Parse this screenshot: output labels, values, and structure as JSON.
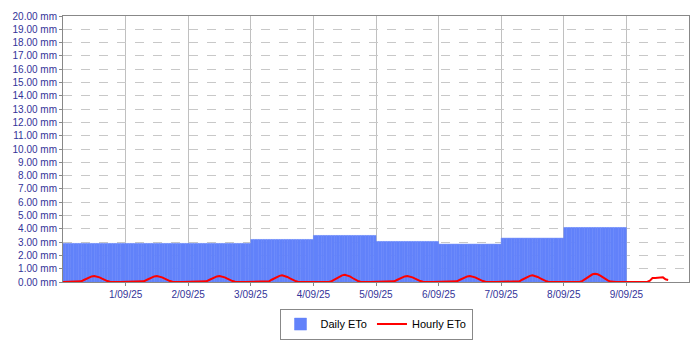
{
  "chart_data": {
    "type": "bar",
    "categories": [
      null,
      null,
      null,
      null,
      null,
      null,
      null,
      null,
      null,
      null,
      null,
      null,
      null,
      null,
      null,
      null,
      null,
      null,
      null,
      null,
      null,
      null,
      null,
      null,
      "1/09/25",
      null,
      null,
      null,
      null,
      null,
      null,
      null,
      null,
      null,
      null,
      null,
      null,
      null,
      null,
      null,
      null,
      null,
      null,
      null,
      null,
      null,
      null,
      null,
      "2/09/25",
      null,
      null,
      null,
      null,
      null,
      null,
      null,
      null,
      null,
      null,
      null,
      null,
      null,
      null,
      null,
      null,
      null,
      null,
      null,
      null,
      null,
      null,
      null,
      "3/09/25",
      null,
      null,
      null,
      null,
      null,
      null,
      null,
      null,
      null,
      null,
      null,
      null,
      null,
      null,
      null,
      null,
      null,
      null,
      null,
      null,
      null,
      null,
      null,
      "4/09/25",
      null,
      null,
      null,
      null,
      null,
      null,
      null,
      null,
      null,
      null,
      null,
      null,
      null,
      null,
      null,
      null,
      null,
      null,
      null,
      null,
      null,
      null,
      null,
      "5/09/25",
      null,
      null,
      null,
      null,
      null,
      null,
      null,
      null,
      null,
      null,
      null,
      null,
      null,
      null,
      null,
      null,
      null,
      null,
      null,
      null,
      null,
      null,
      null,
      "6/09/25",
      null,
      null,
      null,
      null,
      null,
      null,
      null,
      null,
      null,
      null,
      null,
      null,
      null,
      null,
      null,
      null,
      null,
      null,
      null,
      null,
      null,
      null,
      null,
      "7/09/25",
      null,
      null,
      null,
      null,
      null,
      null,
      null,
      null,
      null,
      null,
      null,
      null,
      null,
      null,
      null,
      null,
      null,
      null,
      null,
      null,
      null,
      null,
      null,
      "8/09/25",
      null,
      null,
      null,
      null,
      null,
      null,
      null,
      null,
      null,
      null,
      null,
      null,
      null,
      null,
      null,
      null,
      null,
      null,
      null,
      null,
      null,
      null,
      null,
      "9/09/25",
      null,
      null,
      null,
      null,
      null,
      null,
      null,
      null,
      null,
      null,
      null,
      null,
      null,
      null,
      null,
      null,
      null,
      null,
      null,
      null,
      null,
      null,
      null,
      null
    ],
    "series": [
      {
        "name": "Daily ETo",
        "type": "bar",
        "color": "#6282FA",
        "values": [
          2.9,
          2.9,
          2.9,
          2.9,
          2.9,
          2.9,
          2.9,
          2.9,
          2.9,
          2.9,
          2.9,
          2.9,
          2.9,
          2.9,
          2.9,
          2.9,
          2.9,
          2.9,
          2.9,
          2.9,
          2.9,
          2.9,
          2.9,
          2.9,
          2.9,
          2.9,
          2.9,
          2.9,
          2.9,
          2.9,
          2.9,
          2.9,
          2.9,
          2.9,
          2.9,
          2.9,
          2.9,
          2.9,
          2.9,
          2.9,
          2.9,
          2.9,
          2.9,
          2.9,
          2.9,
          2.9,
          2.9,
          2.9,
          2.9,
          2.9,
          2.9,
          2.9,
          2.9,
          2.9,
          2.9,
          2.9,
          2.9,
          2.9,
          2.9,
          2.9,
          2.9,
          2.9,
          2.9,
          2.9,
          2.9,
          2.9,
          2.9,
          2.9,
          2.9,
          2.9,
          2.9,
          2.9,
          3.2,
          3.2,
          3.2,
          3.2,
          3.2,
          3.2,
          3.2,
          3.2,
          3.2,
          3.2,
          3.2,
          3.2,
          3.2,
          3.2,
          3.2,
          3.2,
          3.2,
          3.2,
          3.2,
          3.2,
          3.2,
          3.2,
          3.2,
          3.2,
          3.5,
          3.5,
          3.5,
          3.5,
          3.5,
          3.5,
          3.5,
          3.5,
          3.5,
          3.5,
          3.5,
          3.5,
          3.5,
          3.5,
          3.5,
          3.5,
          3.5,
          3.5,
          3.5,
          3.5,
          3.5,
          3.5,
          3.5,
          3.5,
          3.05,
          3.05,
          3.05,
          3.05,
          3.05,
          3.05,
          3.05,
          3.05,
          3.05,
          3.05,
          3.05,
          3.05,
          3.05,
          3.05,
          3.05,
          3.05,
          3.05,
          3.05,
          3.05,
          3.05,
          3.05,
          3.05,
          3.05,
          3.05,
          2.85,
          2.85,
          2.85,
          2.85,
          2.85,
          2.85,
          2.85,
          2.85,
          2.85,
          2.85,
          2.85,
          2.85,
          2.85,
          2.85,
          2.85,
          2.85,
          2.85,
          2.85,
          2.85,
          2.85,
          2.85,
          2.85,
          2.85,
          2.85,
          3.3,
          3.3,
          3.3,
          3.3,
          3.3,
          3.3,
          3.3,
          3.3,
          3.3,
          3.3,
          3.3,
          3.3,
          3.3,
          3.3,
          3.3,
          3.3,
          3.3,
          3.3,
          3.3,
          3.3,
          3.3,
          3.3,
          3.3,
          3.3,
          4.1,
          4.1,
          4.1,
          4.1,
          4.1,
          4.1,
          4.1,
          4.1,
          4.1,
          4.1,
          4.1,
          4.1,
          4.1,
          4.1,
          4.1,
          4.1,
          4.1,
          4.1,
          4.1,
          4.1,
          4.1,
          4.1,
          4.1,
          4.1,
          null,
          null,
          null,
          null,
          null,
          null,
          null,
          null,
          null,
          null,
          null,
          null,
          null,
          null,
          null,
          null,
          null,
          null,
          null,
          null,
          null,
          null,
          null,
          null,
          null
        ]
      },
      {
        "name": "Hourly ETo",
        "type": "line",
        "color": "#FF0000",
        "values": [
          0,
          0,
          0,
          0,
          0,
          0,
          0,
          0.05,
          0.15,
          0.25,
          0.35,
          0.42,
          0.45,
          0.42,
          0.35,
          0.25,
          0.15,
          0.07,
          0.02,
          0,
          0,
          0,
          0,
          0,
          0,
          0,
          0,
          0,
          0,
          0,
          0,
          0.05,
          0.15,
          0.25,
          0.35,
          0.42,
          0.45,
          0.42,
          0.35,
          0.25,
          0.15,
          0.07,
          0.02,
          0,
          0,
          0,
          0,
          0,
          0,
          0,
          0,
          0,
          0,
          0,
          0,
          0.05,
          0.15,
          0.25,
          0.35,
          0.42,
          0.45,
          0.42,
          0.35,
          0.25,
          0.15,
          0.07,
          0.02,
          0,
          0,
          0,
          0,
          0,
          0,
          0,
          0,
          0,
          0,
          0,
          0,
          0.05,
          0.17,
          0.28,
          0.38,
          0.46,
          0.5,
          0.46,
          0.38,
          0.28,
          0.17,
          0.08,
          0.02,
          0,
          0,
          0,
          0,
          0,
          0,
          0,
          0,
          0,
          0,
          0,
          0,
          0.06,
          0.18,
          0.3,
          0.42,
          0.5,
          0.54,
          0.5,
          0.42,
          0.3,
          0.18,
          0.08,
          0.02,
          0,
          0,
          0,
          0,
          0,
          0,
          0,
          0,
          0,
          0,
          0,
          0,
          0.05,
          0.15,
          0.25,
          0.35,
          0.42,
          0.45,
          0.42,
          0.35,
          0.25,
          0.15,
          0.07,
          0.02,
          0,
          0,
          0,
          0,
          0,
          0,
          0,
          0,
          0,
          0,
          0,
          0,
          0.05,
          0.15,
          0.25,
          0.35,
          0.42,
          0.45,
          0.42,
          0.35,
          0.25,
          0.15,
          0.07,
          0.02,
          0,
          0,
          0,
          0,
          0,
          0,
          0,
          0,
          0,
          0,
          0,
          0,
          0.05,
          0.17,
          0.28,
          0.38,
          0.46,
          0.5,
          0.46,
          0.38,
          0.28,
          0.17,
          0.08,
          0.02,
          0,
          0,
          0,
          0,
          0,
          0,
          0,
          0,
          0,
          0,
          0,
          0,
          0.07,
          0.21,
          0.35,
          0.48,
          0.58,
          0.62,
          0.58,
          0.48,
          0.35,
          0.21,
          0.1,
          0.03,
          0,
          0,
          0,
          0,
          0,
          0,
          0,
          0,
          0,
          0,
          0,
          0,
          0,
          0,
          0.1,
          0.3,
          0.3,
          0.3,
          0.35,
          0.35,
          0.2,
          0.15,
          null,
          null,
          null,
          null,
          null,
          null,
          null,
          null
        ]
      }
    ],
    "ylim": [
      0,
      20
    ],
    "yticks": [
      {
        "value": 0,
        "label": "0.00 mm"
      },
      {
        "value": 1,
        "label": "1.00 mm"
      },
      {
        "value": 2,
        "label": "2.00 mm"
      },
      {
        "value": 3,
        "label": "3.00 mm"
      },
      {
        "value": 4,
        "label": "4.00 mm"
      },
      {
        "value": 5,
        "label": "5.00 mm"
      },
      {
        "value": 6,
        "label": "6.00 mm"
      },
      {
        "value": 7,
        "label": "7.00 mm"
      },
      {
        "value": 8,
        "label": "8.00 mm"
      },
      {
        "value": 9,
        "label": "9.00 mm"
      },
      {
        "value": 10,
        "label": "10.00 mm"
      },
      {
        "value": 11,
        "label": "11.00 mm"
      },
      {
        "value": 12,
        "label": "12.00 mm"
      },
      {
        "value": 13,
        "label": "13.00 mm"
      },
      {
        "value": 14,
        "label": "14.00 mm"
      },
      {
        "value": 15,
        "label": "15.00 mm"
      },
      {
        "value": 16,
        "label": "16.00 mm"
      },
      {
        "value": 17,
        "label": "17.00 mm"
      },
      {
        "value": 18,
        "label": "18.00 mm"
      },
      {
        "value": 19,
        "label": "19.00 mm"
      },
      {
        "value": 20,
        "label": "20.00 mm"
      }
    ],
    "grid": true,
    "legend": "bottom"
  }
}
